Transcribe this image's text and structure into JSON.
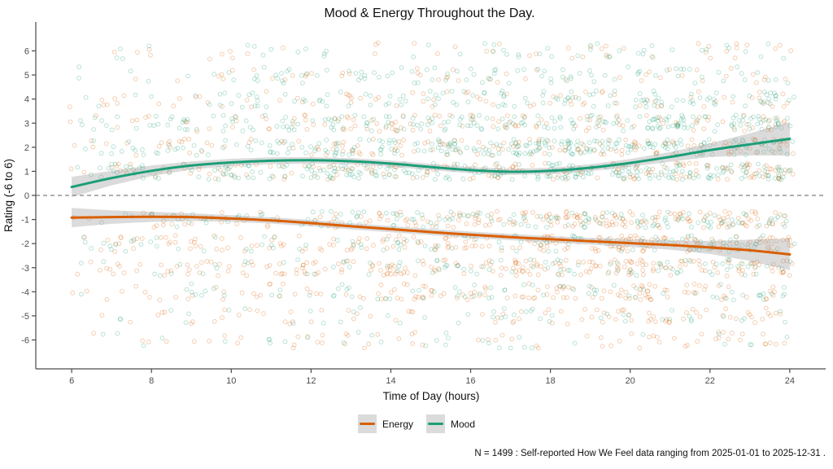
{
  "chart_data": {
    "type": "scatter",
    "title": "Mood & Energy Throughout the Day.",
    "xlabel": "Time of Day (hours)",
    "ylabel": "Rating (-6 to 6)",
    "caption": "N = 1499 : Self-reported How We Feel data ranging from 2025-01-01 to 2025-12-31 .",
    "n": 1499,
    "xlim": [
      5.1,
      24.9
    ],
    "ylim": [
      -7.2,
      7.2
    ],
    "xticks": [
      6,
      8,
      10,
      12,
      14,
      16,
      18,
      20,
      22,
      24
    ],
    "yticks": [
      -6,
      -5,
      -4,
      -3,
      -2,
      -1,
      0,
      1,
      2,
      3,
      4,
      5,
      6
    ],
    "grid": false,
    "legend_position": "bottom",
    "zero_line": {
      "y": 0,
      "color": "#7f7f7f",
      "dash": "5 4"
    },
    "colors": {
      "axis": "#4a4a4a",
      "tick_text": "#4d4d4d",
      "text": "#111111",
      "ribbon": "#999999",
      "ribbon_alpha": 0.35,
      "legend_key_bg": "#DBDBDB",
      "background": "#ffffff"
    },
    "smooth_x": [
      6,
      7,
      8,
      9,
      10,
      11,
      12,
      13,
      14,
      15,
      16,
      17,
      18,
      19,
      20,
      21,
      22,
      23,
      24
    ],
    "series": [
      {
        "name": "Energy",
        "color": "#D95F02",
        "smooth_y": [
          -0.92,
          -0.9,
          -0.89,
          -0.9,
          -0.96,
          -1.04,
          -1.15,
          -1.28,
          -1.4,
          -1.52,
          -1.63,
          -1.73,
          -1.82,
          -1.9,
          -1.98,
          -2.06,
          -2.16,
          -2.28,
          -2.45
        ],
        "ribbon_half": [
          0.4,
          0.28,
          0.21,
          0.16,
          0.14,
          0.13,
          0.13,
          0.13,
          0.13,
          0.13,
          0.13,
          0.13,
          0.13,
          0.14,
          0.16,
          0.19,
          0.27,
          0.44,
          0.66
        ],
        "rating_weights": {
          "-6": 4,
          "-5": 6,
          "-4": 10,
          "-3": 13,
          "-2": 15,
          "-1": 14,
          "1": 11,
          "2": 10,
          "3": 8,
          "4": 5,
          "5": 3,
          "6": 2
        }
      },
      {
        "name": "Mood",
        "color": "#1B9E77",
        "smooth_y": [
          0.35,
          0.72,
          1.02,
          1.24,
          1.37,
          1.44,
          1.46,
          1.42,
          1.32,
          1.18,
          1.05,
          0.98,
          1.02,
          1.15,
          1.35,
          1.6,
          1.88,
          2.12,
          2.35
        ],
        "ribbon_half": [
          0.42,
          0.3,
          0.22,
          0.17,
          0.15,
          0.14,
          0.13,
          0.13,
          0.13,
          0.13,
          0.13,
          0.13,
          0.13,
          0.14,
          0.16,
          0.2,
          0.28,
          0.46,
          0.7
        ],
        "rating_weights": {
          "-6": 2,
          "-5": 3,
          "-4": 5,
          "-3": 7,
          "-2": 8,
          "-1": 9,
          "1": 17,
          "2": 17,
          "3": 13,
          "4": 9,
          "5": 6,
          "6": 4
        }
      }
    ],
    "scatter": {
      "seed": 20250101,
      "points_per_series": 1499,
      "x_power": 0.65,
      "x_uniform_frac": 0.12,
      "x_jitter": 0.3,
      "y_jitter": 0.34,
      "point_radius": 2.4,
      "point_alpha": 0.3
    }
  }
}
